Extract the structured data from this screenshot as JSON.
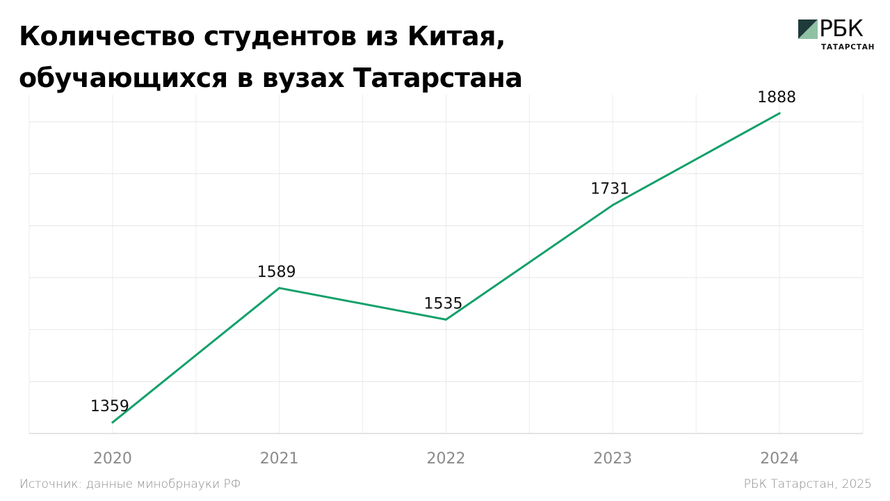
{
  "title": "Количество студентов из Китая, обучающихся в вузах Татарстана",
  "logo": {
    "word": "РБК",
    "sub": "ТАТАРСТАН",
    "colors": {
      "dark": "#1f3a3a",
      "green": "#8fc2a3"
    }
  },
  "chart_data": {
    "type": "line",
    "title": "Количество студентов из Китая, обучающихся в вузах Татарстана",
    "categories": [
      "2020",
      "2021",
      "2022",
      "2023",
      "2024"
    ],
    "series": [
      {
        "values": [
          1359,
          1589,
          1535,
          1731,
          1888
        ],
        "color": "#13a06a"
      }
    ],
    "ylim": [
      1340,
      1920
    ],
    "grid": true,
    "legend": "none",
    "xlabel": "",
    "ylabel": ""
  },
  "footer": {
    "source": "Источник: данные минобрнауки РФ",
    "credit": "РБК Татарстан, 2025"
  }
}
